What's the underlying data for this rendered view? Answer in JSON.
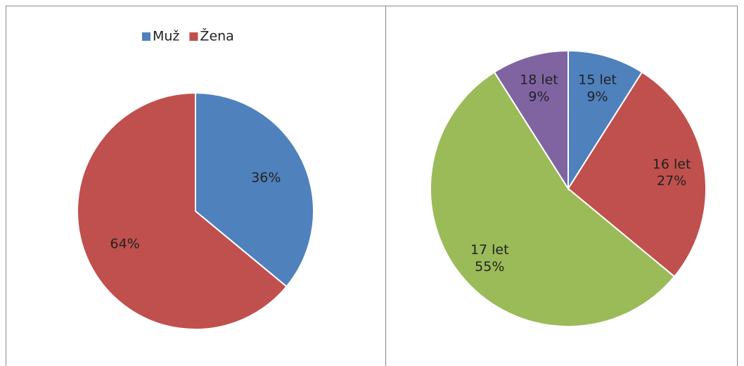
{
  "chart_data": [
    {
      "type": "pie",
      "categories": [
        "Muž",
        "Žena"
      ],
      "values": [
        36,
        64
      ],
      "value_labels": [
        "36%",
        "64%"
      ],
      "colors": [
        "#4f81bd",
        "#c0504d"
      ],
      "legend": "top",
      "show_category_labels": false
    },
    {
      "type": "pie",
      "categories": [
        "15 let",
        "16 let",
        "17 let",
        "18 let"
      ],
      "values": [
        9,
        27,
        55,
        9
      ],
      "value_labels": [
        "9%",
        "27%",
        "55%",
        "9%"
      ],
      "colors": [
        "#4f81bd",
        "#c0504d",
        "#9bbb59",
        "#8064a2"
      ],
      "show_category_labels": true
    }
  ]
}
